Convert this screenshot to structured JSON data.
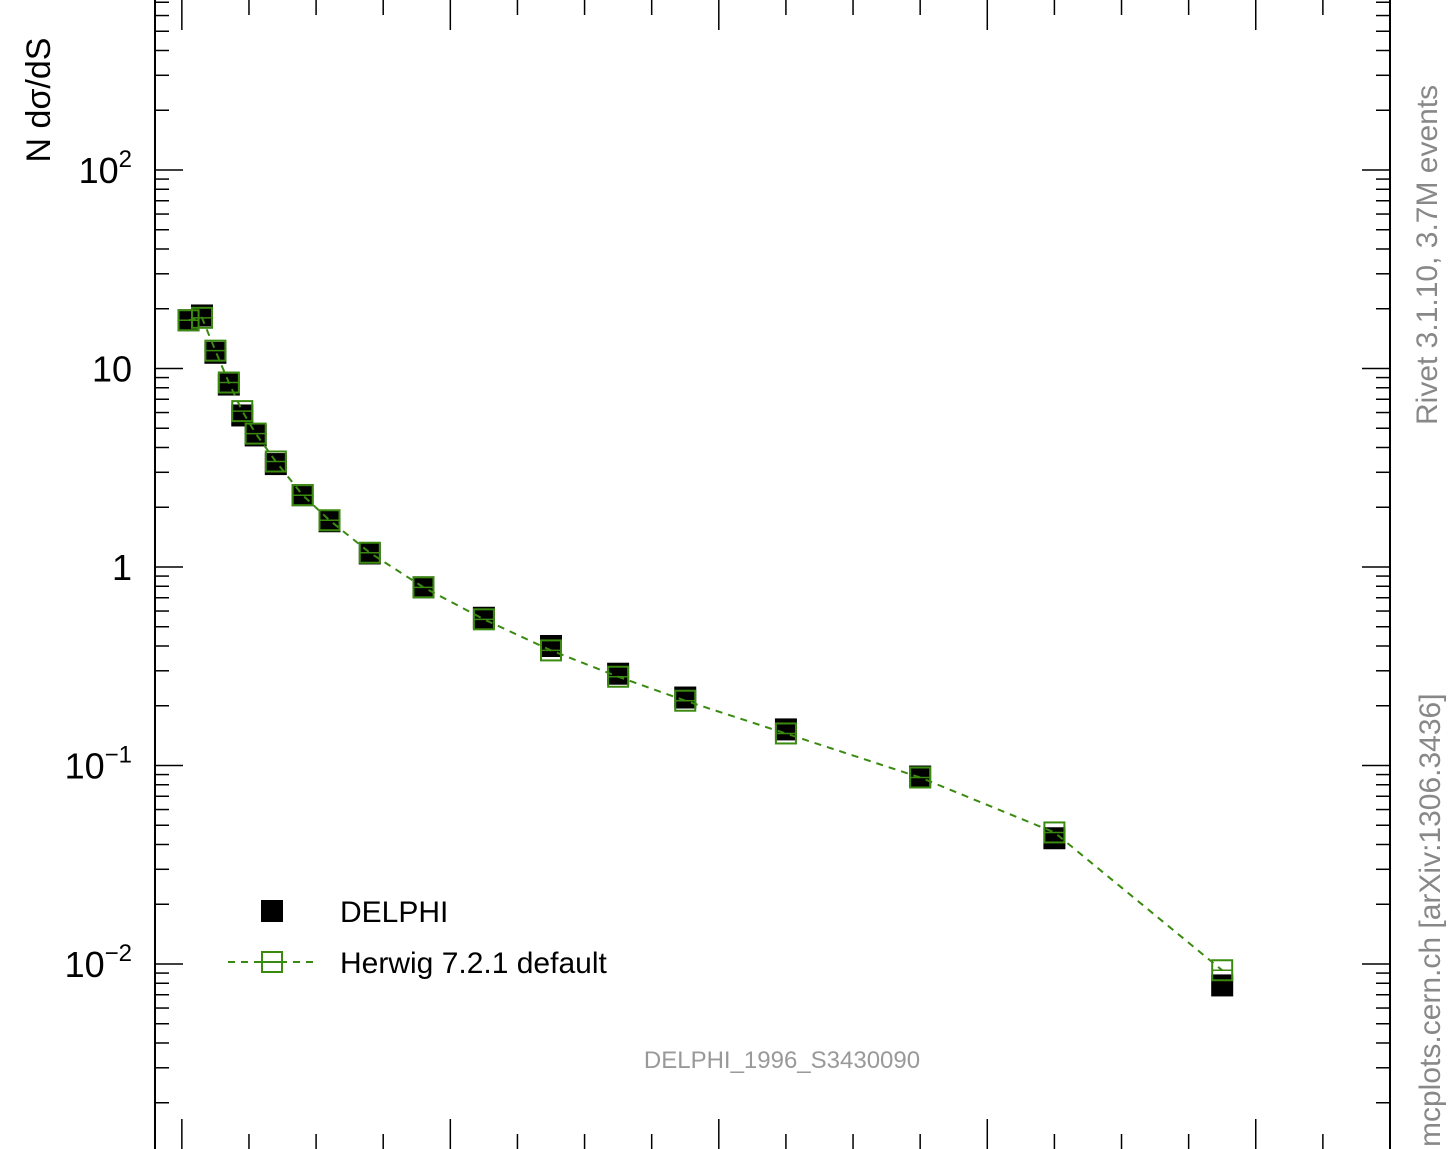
{
  "chart_data": {
    "type": "scatter",
    "ylabel": "N dσ/dS",
    "y_scale": "log",
    "ylim": [
      0.0009,
      800
    ],
    "xlim": [
      -0.02,
      0.9
    ],
    "y_ticks": [
      {
        "value": 100,
        "base": "10",
        "exp": "2"
      },
      {
        "value": 10,
        "base": "10",
        "exp": ""
      },
      {
        "value": 1,
        "base": "1",
        "exp": ""
      },
      {
        "value": 0.1,
        "base": "10",
        "exp": "−1"
      },
      {
        "value": 0.01,
        "base": "10",
        "exp": "−2"
      }
    ],
    "legend_position": "bottom-left",
    "series": [
      {
        "name": "DELPHI",
        "marker": "filled-square",
        "color": "#000000",
        "x": [
          0.005,
          0.015,
          0.025,
          0.035,
          0.045,
          0.055,
          0.07,
          0.09,
          0.11,
          0.14,
          0.18,
          0.225,
          0.275,
          0.325,
          0.375,
          0.45,
          0.55,
          0.65,
          0.775
        ],
        "y": [
          17.5,
          18.5,
          12.0,
          8.3,
          5.8,
          4.6,
          3.3,
          2.3,
          1.7,
          1.17,
          0.79,
          0.555,
          0.4,
          0.29,
          0.22,
          0.152,
          0.088,
          0.043,
          0.0078
        ]
      },
      {
        "name": "Herwig 7.2.1 default",
        "marker": "open-square",
        "line": "dashed",
        "color": "#3a8a10",
        "x": [
          0.005,
          0.015,
          0.025,
          0.035,
          0.045,
          0.055,
          0.07,
          0.09,
          0.11,
          0.14,
          0.18,
          0.225,
          0.275,
          0.325,
          0.375,
          0.45,
          0.55,
          0.65,
          0.775
        ],
        "y": [
          17.5,
          18.0,
          12.3,
          8.5,
          6.1,
          4.7,
          3.4,
          2.3,
          1.72,
          1.18,
          0.79,
          0.545,
          0.38,
          0.28,
          0.212,
          0.145,
          0.087,
          0.046,
          0.0093
        ]
      }
    ]
  },
  "watermark": "DELPHI_1996_S3430090",
  "side_labels": {
    "rivet": "Rivet 3.1.10,  3.7M events",
    "mcplots": "mcplots.cern.ch [arXiv:1306.3436]"
  }
}
